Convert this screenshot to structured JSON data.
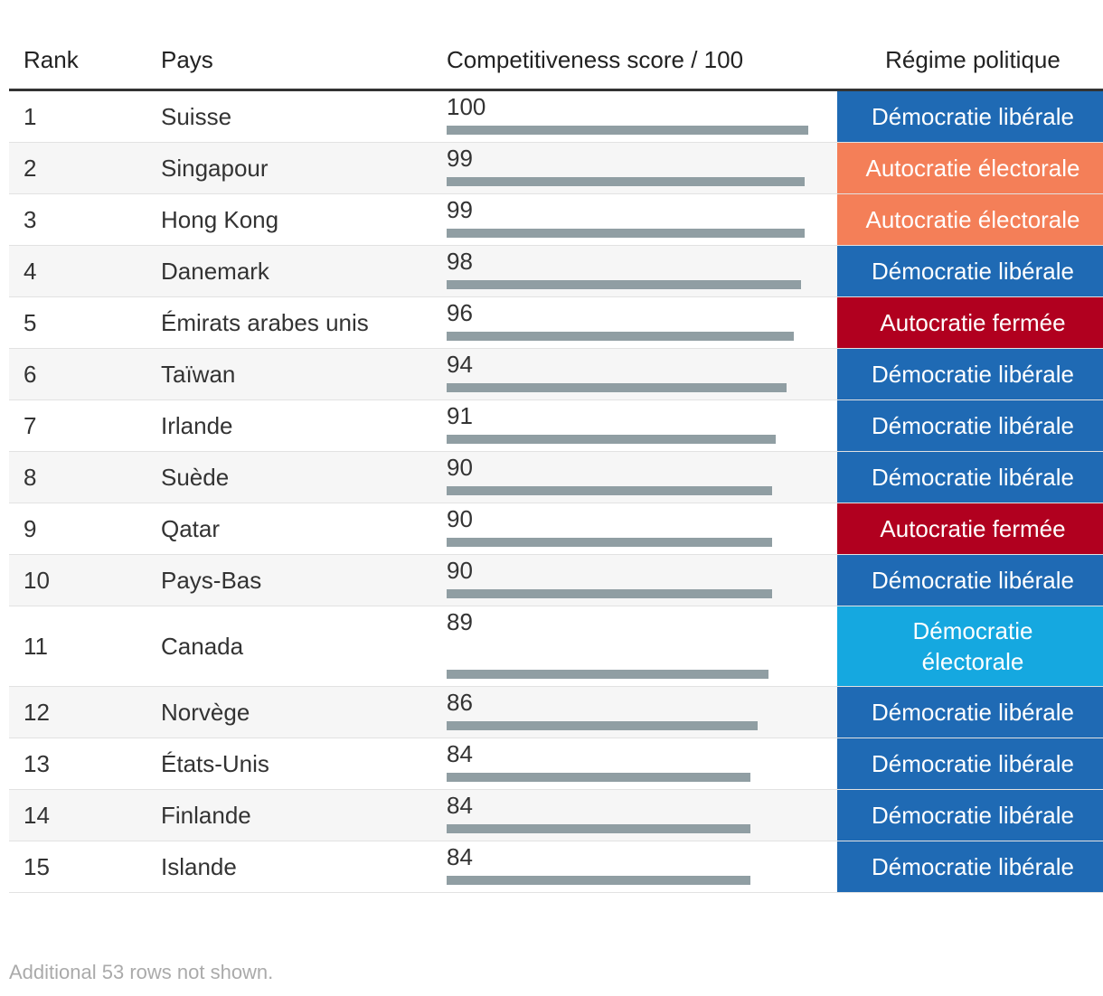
{
  "table": {
    "columns": [
      "Rank",
      "Pays",
      "Competitiveness score / 100",
      "Régime politique"
    ],
    "rows": [
      {
        "rank": 1,
        "country": "Suisse",
        "score": 100,
        "regime": "Démocratie libérale"
      },
      {
        "rank": 2,
        "country": "Singapour",
        "score": 99,
        "regime": "Autocratie électorale"
      },
      {
        "rank": 3,
        "country": "Hong Kong",
        "score": 99,
        "regime": "Autocratie électorale"
      },
      {
        "rank": 4,
        "country": "Danemark",
        "score": 98,
        "regime": "Démocratie libérale"
      },
      {
        "rank": 5,
        "country": "Émirats arabes unis",
        "score": 96,
        "regime": "Autocratie fermée"
      },
      {
        "rank": 6,
        "country": "Taïwan",
        "score": 94,
        "regime": "Démocratie libérale"
      },
      {
        "rank": 7,
        "country": "Irlande",
        "score": 91,
        "regime": "Démocratie libérale"
      },
      {
        "rank": 8,
        "country": "Suède",
        "score": 90,
        "regime": "Démocratie libérale"
      },
      {
        "rank": 9,
        "country": "Qatar",
        "score": 90,
        "regime": "Autocratie fermée"
      },
      {
        "rank": 10,
        "country": "Pays-Bas",
        "score": 90,
        "regime": "Démocratie libérale"
      },
      {
        "rank": 11,
        "country": "Canada",
        "score": 89,
        "regime": "Démocratie électorale"
      },
      {
        "rank": 12,
        "country": "Norvège",
        "score": 86,
        "regime": "Démocratie libérale"
      },
      {
        "rank": 13,
        "country": "États-Unis",
        "score": 84,
        "regime": "Démocratie libérale"
      },
      {
        "rank": 14,
        "country": "Finlande",
        "score": 84,
        "regime": "Démocratie libérale"
      },
      {
        "rank": 15,
        "country": "Islande",
        "score": 84,
        "regime": "Démocratie libérale"
      }
    ],
    "regime_colors": {
      "Démocratie libérale": "#1f6ab4",
      "Autocratie électorale": "#f47f58",
      "Autocratie fermée": "#b1001f",
      "Démocratie électorale": "#15a8e0"
    },
    "footer": "Additional 53 rows not shown."
  }
}
